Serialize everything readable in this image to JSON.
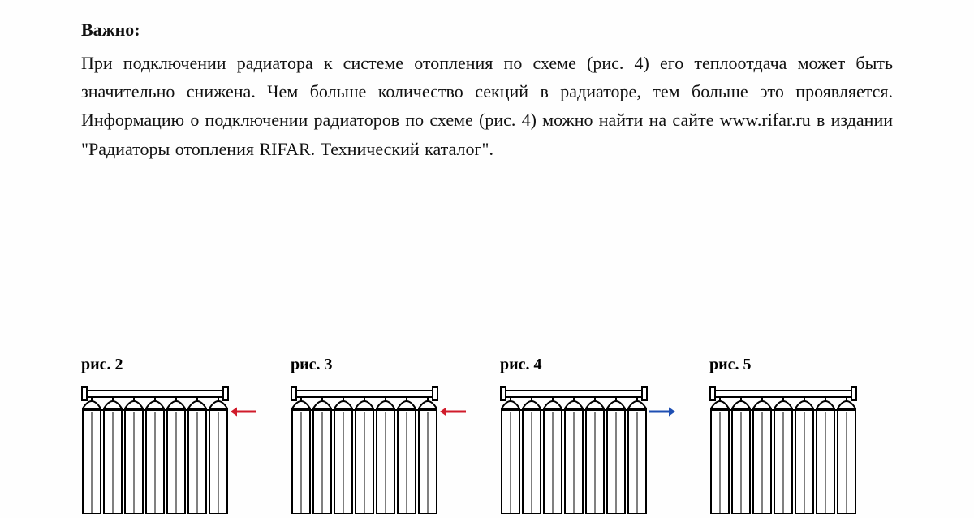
{
  "doc": {
    "heading": "Важно:",
    "body": "При подключении радиатора к системе отопления по схеме (рис. 4) его теплоотдача может быть значительно снижена. Чем больше количество секций в радиаторе, тем больше это проявляется. Информацию о подключении радиаторов по схеме (рис. 4) можно найти на сайте www.rifar.ru в издании \"Радиаторы отопления RIFAR. Технический каталог\".",
    "font_family": "Times New Roman",
    "font_size_pt": 16,
    "text_color": "#111111",
    "background": "#fefefe"
  },
  "figures": [
    {
      "label": "рис. 2",
      "arrow_side": "right",
      "arrow_dir": "in",
      "arrow_color": "#d01b2a"
    },
    {
      "label": "рис. 3",
      "arrow_side": "right",
      "arrow_dir": "in",
      "arrow_color": "#d01b2a"
    },
    {
      "label": "рис. 4",
      "arrow_side": "right",
      "arrow_dir": "out",
      "arrow_color": "#1e4fb3"
    },
    {
      "label": "рис. 5",
      "arrow_side": "right",
      "arrow_dir": "none",
      "arrow_color": "#000000"
    }
  ],
  "radiator": {
    "sections": 7,
    "section_w": 26,
    "height": 160,
    "stroke": "#000000",
    "stroke_w": 2,
    "fill": "#ffffff",
    "arrow": {
      "len": 34,
      "stroke_w": 3,
      "head": 8,
      "y": 34
    }
  }
}
